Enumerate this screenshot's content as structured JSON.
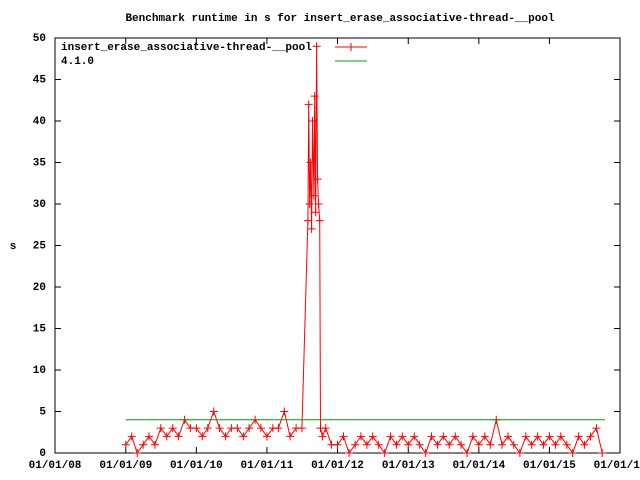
{
  "chart_data": {
    "type": "line",
    "title": "Benchmark runtime in s for insert_erase_associative-thread-__pool",
    "ylabel": "s",
    "ylim": [
      0,
      50
    ],
    "yticks": [
      0,
      5,
      10,
      15,
      20,
      25,
      30,
      35,
      40,
      45,
      50
    ],
    "xlim": [
      "2008-01-01",
      "2016-01-01"
    ],
    "xticks": [
      {
        "value": "2008-01-01",
        "label": "01/01/08"
      },
      {
        "value": "2009-01-01",
        "label": "01/01/09"
      },
      {
        "value": "2010-01-01",
        "label": "01/01/10"
      },
      {
        "value": "2011-01-01",
        "label": "01/01/11"
      },
      {
        "value": "2012-01-01",
        "label": "01/01/12"
      },
      {
        "value": "2013-01-01",
        "label": "01/01/13"
      },
      {
        "value": "2014-01-01",
        "label": "01/01/14"
      },
      {
        "value": "2015-01-01",
        "label": "01/01/15"
      },
      {
        "value": "2016-01-01",
        "label": "01/01/16"
      }
    ],
    "legend": "top-left",
    "series": [
      {
        "name": "insert_erase_associative-thread-__pool",
        "color": "#ff0000",
        "markers": true,
        "x": [
          "2009-01-01",
          "2009-02-01",
          "2009-03-01",
          "2009-04-01",
          "2009-05-01",
          "2009-06-01",
          "2009-07-01",
          "2009-08-01",
          "2009-09-01",
          "2009-10-01",
          "2009-11-01",
          "2009-12-01",
          "2010-01-01",
          "2010-02-01",
          "2010-03-01",
          "2010-04-01",
          "2010-05-01",
          "2010-06-01",
          "2010-07-01",
          "2010-08-01",
          "2010-09-01",
          "2010-10-01",
          "2010-11-01",
          "2010-12-01",
          "2011-01-01",
          "2011-02-01",
          "2011-03-01",
          "2011-04-01",
          "2011-05-01",
          "2011-06-01",
          "2011-07-01",
          "2011-08-01",
          "2011-08-05",
          "2011-08-10",
          "2011-08-15",
          "2011-08-20",
          "2011-08-25",
          "2011-09-01",
          "2011-09-05",
          "2011-09-10",
          "2011-09-15",
          "2011-09-20",
          "2011-09-25",
          "2011-10-01",
          "2011-10-05",
          "2011-10-15",
          "2011-11-01",
          "2011-12-01",
          "2012-01-01",
          "2012-02-01",
          "2012-03-01",
          "2012-04-01",
          "2012-05-01",
          "2012-06-01",
          "2012-07-01",
          "2012-08-01",
          "2012-09-01",
          "2012-10-01",
          "2012-11-01",
          "2012-12-01",
          "2013-01-01",
          "2013-02-01",
          "2013-03-01",
          "2013-04-01",
          "2013-05-01",
          "2013-06-01",
          "2013-07-01",
          "2013-08-01",
          "2013-09-01",
          "2013-10-01",
          "2013-11-01",
          "2013-12-01",
          "2014-01-01",
          "2014-02-01",
          "2014-03-01",
          "2014-04-01",
          "2014-05-01",
          "2014-06-01",
          "2014-07-01",
          "2014-08-01",
          "2014-09-01",
          "2014-10-01",
          "2014-11-01",
          "2014-12-01",
          "2015-01-01",
          "2015-02-01",
          "2015-03-01",
          "2015-04-01",
          "2015-05-01",
          "2015-06-01",
          "2015-07-01",
          "2015-08-01",
          "2015-09-01",
          "2015-10-01"
        ],
        "values": [
          1,
          2,
          0,
          1,
          2,
          1,
          3,
          2,
          3,
          2,
          4,
          3,
          3,
          2,
          3,
          5,
          3,
          2,
          3,
          3,
          2,
          3,
          4,
          3,
          2,
          3,
          3,
          5,
          2,
          3,
          3,
          28,
          42,
          30,
          35,
          27,
          40,
          31,
          43,
          29,
          49,
          33,
          30,
          28,
          3,
          2,
          3,
          1,
          1,
          2,
          0,
          1,
          2,
          1,
          2,
          1,
          0,
          2,
          1,
          2,
          1,
          2,
          1,
          0,
          2,
          1,
          2,
          1,
          2,
          1,
          0,
          2,
          1,
          2,
          1,
          4,
          1,
          2,
          1,
          0,
          2,
          1,
          2,
          1,
          2,
          1,
          2,
          1,
          0,
          2,
          1,
          2,
          3,
          0
        ]
      },
      {
        "name": "4.1.0",
        "color": "#00a000",
        "markers": false,
        "x": [
          "2009-01-01",
          "2015-10-15"
        ],
        "values": [
          4,
          4
        ]
      }
    ]
  }
}
